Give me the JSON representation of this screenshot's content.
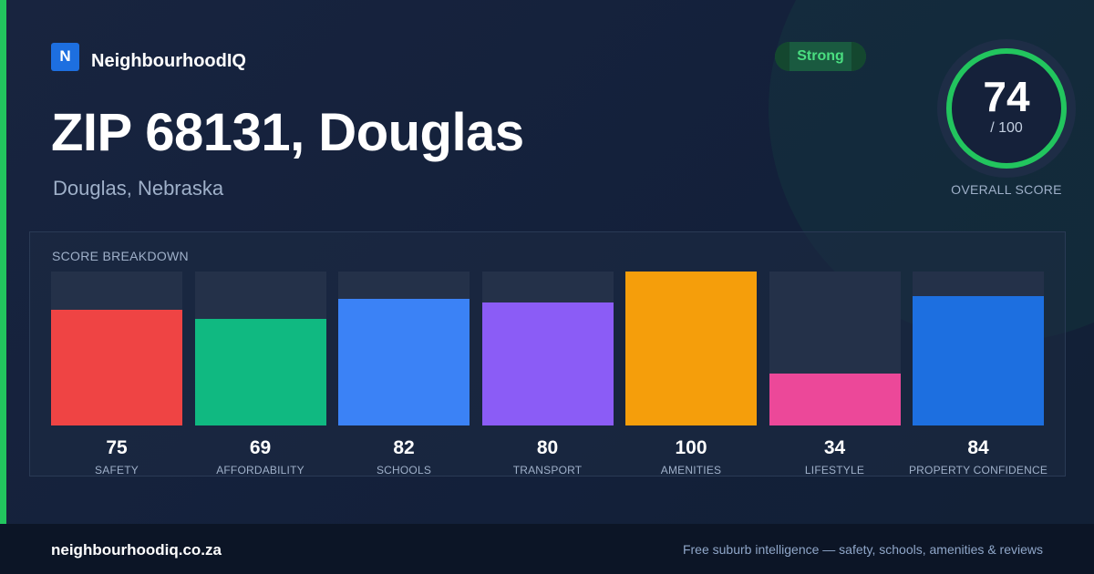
{
  "brand": {
    "logo_letter": "N",
    "name": "NeighbourhoodIQ"
  },
  "header": {
    "title": "ZIP 68131, Douglas",
    "subtitle": "Douglas, Nebraska"
  },
  "badge": {
    "label": "Strong",
    "color": "#4ade80"
  },
  "overall": {
    "score": "74",
    "max": "/ 100",
    "caption": "OVERALL SCORE",
    "ring_color": "#22c55e"
  },
  "breakdown": {
    "title": "SCORE BREAKDOWN",
    "items": [
      {
        "label": "SAFETY",
        "value": 75,
        "color": "#ef4444"
      },
      {
        "label": "AFFORDABILITY",
        "value": 69,
        "color": "#10b981"
      },
      {
        "label": "SCHOOLS",
        "value": 82,
        "color": "#3b82f6"
      },
      {
        "label": "TRANSPORT",
        "value": 80,
        "color": "#8b5cf6"
      },
      {
        "label": "AMENITIES",
        "value": 100,
        "color": "#f59e0b"
      },
      {
        "label": "LIFESTYLE",
        "value": 34,
        "color": "#ec4899"
      },
      {
        "label": "PROPERTY CONFIDENCE",
        "value": 84,
        "color": "#1d6fe0"
      }
    ]
  },
  "footer": {
    "site": "neighbourhoodiq.co.za",
    "tagline": "Free suburb intelligence — safety, schools, amenities & reviews"
  }
}
